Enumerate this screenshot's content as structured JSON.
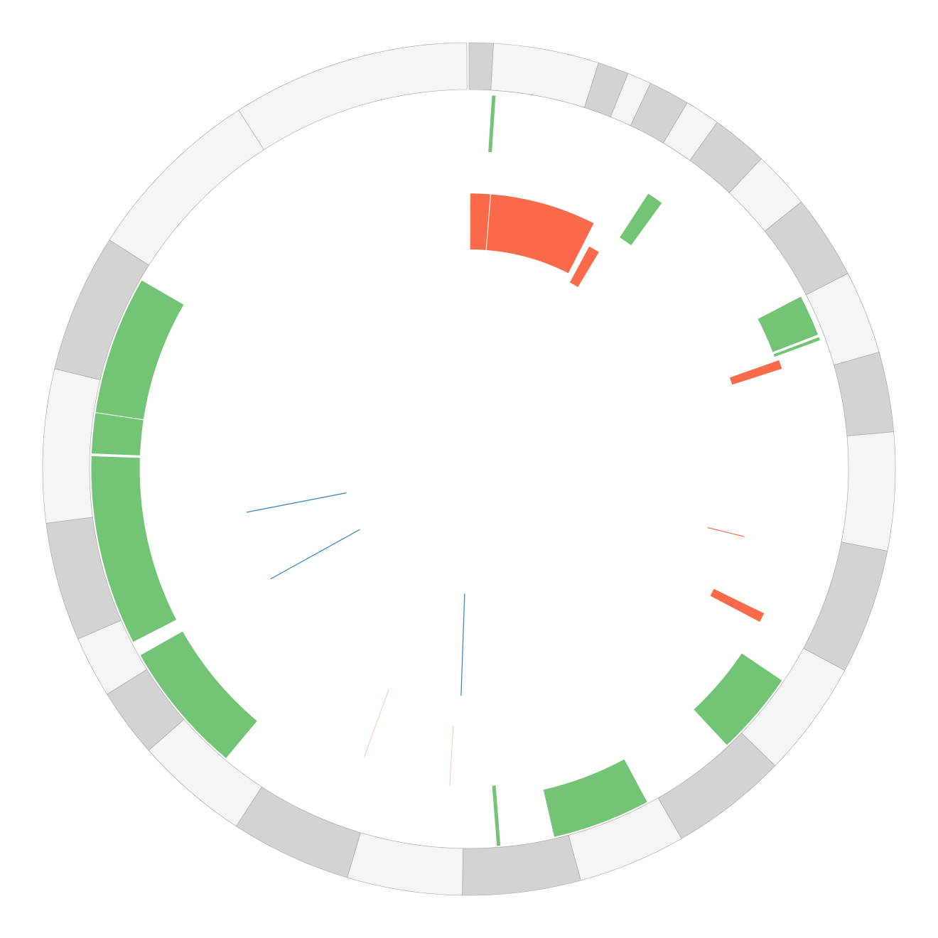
{
  "chart_data": {
    "type": "circos",
    "title": "",
    "colors": {
      "ideogram_light": "#f5f5f5",
      "ideogram_dark": "#d3d3d3",
      "ideogram_stroke": "#a0a0a0",
      "positive": "#74c476",
      "negative": "#fb6a4a",
      "link": "#3182bd",
      "link_faint": "#fcbba1"
    },
    "ideogram": [
      {
        "start": 0.0,
        "end": 3.3,
        "shade": "dark"
      },
      {
        "start": 3.3,
        "end": 17.7,
        "shade": "light"
      },
      {
        "start": 17.7,
        "end": 21.9,
        "shade": "dark"
      },
      {
        "start": 21.9,
        "end": 25.2,
        "shade": "light"
      },
      {
        "start": 25.2,
        "end": 30.8,
        "shade": "dark"
      },
      {
        "start": 30.8,
        "end": 35.6,
        "shade": "light"
      },
      {
        "start": 35.6,
        "end": 43.3,
        "shade": "dark"
      },
      {
        "start": 43.3,
        "end": 51.2,
        "shade": "light"
      },
      {
        "start": 51.2,
        "end": 62.7,
        "shade": "dark"
      },
      {
        "start": 62.7,
        "end": 74.1,
        "shade": "light"
      },
      {
        "start": 74.1,
        "end": 85.0,
        "shade": "dark"
      },
      {
        "start": 85.0,
        "end": 101.1,
        "shade": "light"
      },
      {
        "start": 101.1,
        "end": 118.2,
        "shade": "dark"
      },
      {
        "start": 118.2,
        "end": 134.1,
        "shade": "light"
      },
      {
        "start": 134.1,
        "end": 150.1,
        "shade": "dark"
      },
      {
        "start": 150.1,
        "end": 164.8,
        "shade": "light"
      },
      {
        "start": 164.8,
        "end": 180.9,
        "shade": "dark"
      },
      {
        "start": 180.9,
        "end": 196.6,
        "shade": "light"
      },
      {
        "start": 196.6,
        "end": 213.1,
        "shade": "dark"
      },
      {
        "start": 213.1,
        "end": 228.7,
        "shade": "light"
      },
      {
        "start": 228.7,
        "end": 238.1,
        "shade": "dark"
      },
      {
        "start": 238.1,
        "end": 246.5,
        "shade": "light"
      },
      {
        "start": 246.5,
        "end": 262.7,
        "shade": "dark"
      },
      {
        "start": 262.7,
        "end": 283.6,
        "shade": "light"
      },
      {
        "start": 283.6,
        "end": 302.5,
        "shade": "dark"
      },
      {
        "start": 302.5,
        "end": 327.3,
        "shade": "light"
      },
      {
        "start": 327.3,
        "end": 359.7,
        "shade": "light"
      }
    ],
    "blocks": [
      {
        "start": 0.2,
        "end": 4.5,
        "from": 0.58,
        "to": 0.73,
        "sign": "negative"
      },
      {
        "start": 4.5,
        "end": 27.0,
        "from": 0.58,
        "to": 0.73,
        "sign": "negative"
      },
      {
        "start": 28.3,
        "end": 31.0,
        "from": 0.56,
        "to": 0.67,
        "sign": "negative"
      },
      {
        "start": 33.0,
        "end": 36.0,
        "from": 0.73,
        "to": 0.87,
        "sign": "positive"
      },
      {
        "start": 62.5,
        "end": 69.0,
        "from": 0.86,
        "to": 0.99,
        "sign": "positive"
      },
      {
        "start": 69.3,
        "end": 69.9,
        "from": 0.86,
        "to": 0.99,
        "sign": "positive"
      },
      {
        "start": 70.6,
        "end": 72.3,
        "from": 0.73,
        "to": 0.87,
        "sign": "negative"
      },
      {
        "start": 116.0,
        "end": 117.8,
        "from": 0.72,
        "to": 0.87,
        "sign": "negative"
      },
      {
        "start": 124.0,
        "end": 137.0,
        "from": 0.87,
        "to": 1.0,
        "sign": "positive"
      },
      {
        "start": 151.8,
        "end": 167.0,
        "from": 0.87,
        "to": 1.0,
        "sign": "positive"
      },
      {
        "start": 220.0,
        "end": 240.5,
        "from": 0.87,
        "to": 1.0,
        "sign": "positive"
      },
      {
        "start": 242.7,
        "end": 272.0,
        "from": 0.87,
        "to": 1.0,
        "sign": "positive"
      },
      {
        "start": 272.3,
        "end": 278.6,
        "from": 0.87,
        "to": 1.0,
        "sign": "positive"
      },
      {
        "start": 278.6,
        "end": 300.0,
        "from": 0.87,
        "to": 1.0,
        "sign": "positive"
      }
    ],
    "ticks": [
      {
        "angle": 3.8,
        "from": 0.84,
        "to": 0.99,
        "sign": "positive"
      },
      {
        "angle": 175.5,
        "from": 0.84,
        "to": 1.0,
        "sign": "positive"
      },
      {
        "angle": 103.8,
        "from": 0.65,
        "to": 0.75,
        "sign": "negative"
      }
    ],
    "links": [
      {
        "angle": 259.0,
        "from": 0.33,
        "to": 0.6,
        "tone": "link"
      },
      {
        "angle": 241.0,
        "from": 0.33,
        "to": 0.6,
        "tone": "link"
      },
      {
        "angle": 182.0,
        "from": 0.33,
        "to": 0.6,
        "tone": "link"
      },
      {
        "angle": 200.0,
        "from": 0.62,
        "to": 0.81,
        "tone": "link_faint"
      },
      {
        "angle": 183.5,
        "from": 0.68,
        "to": 0.84,
        "tone": "link_faint"
      }
    ]
  }
}
